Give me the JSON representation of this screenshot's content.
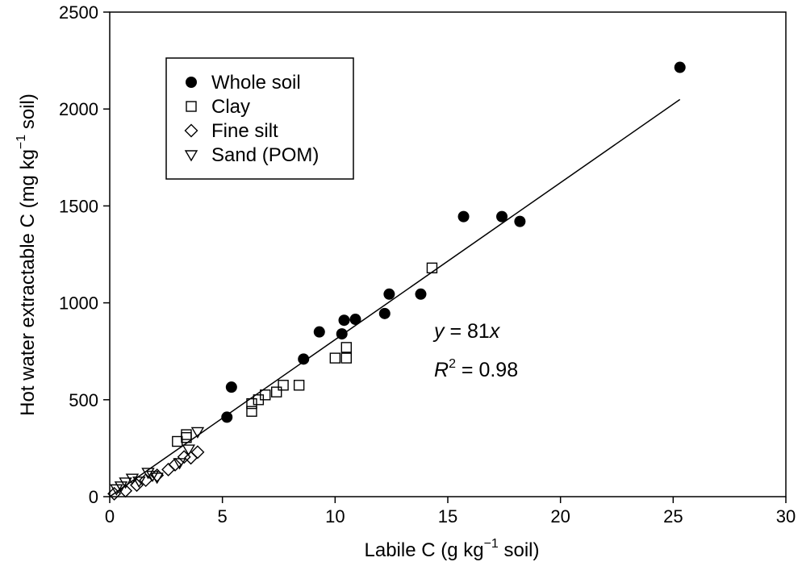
{
  "chart_data": {
    "type": "scatter",
    "xlim": [
      0,
      30
    ],
    "ylim": [
      0,
      2500
    ],
    "xticks": [
      0,
      5,
      10,
      15,
      20,
      25,
      30
    ],
    "yticks": [
      0,
      500,
      1000,
      1500,
      2000,
      2500
    ],
    "xlabel": {
      "prefix": "Labile C (g kg",
      "sup": "−1",
      "suffix": " soil)"
    },
    "ylabel": {
      "prefix": "Hot water extractable C (mg kg",
      "sup": "−1",
      "suffix": " soil)"
    },
    "grid": false,
    "legend_position": "top-left",
    "series": [
      {
        "name": "Whole soil",
        "marker": "filled-circle",
        "points": [
          [
            5.2,
            410
          ],
          [
            5.4,
            565
          ],
          [
            8.6,
            710
          ],
          [
            9.3,
            850
          ],
          [
            10.3,
            840
          ],
          [
            10.4,
            910
          ],
          [
            10.9,
            915
          ],
          [
            12.2,
            945
          ],
          [
            12.4,
            1045
          ],
          [
            13.8,
            1045
          ],
          [
            15.7,
            1445
          ],
          [
            17.4,
            1445
          ],
          [
            18.2,
            1420
          ],
          [
            25.3,
            2215
          ]
        ]
      },
      {
        "name": "Clay",
        "marker": "open-square",
        "points": [
          [
            3.0,
            285
          ],
          [
            3.4,
            320
          ],
          [
            3.4,
            305
          ],
          [
            6.3,
            440
          ],
          [
            6.3,
            480
          ],
          [
            6.6,
            500
          ],
          [
            6.9,
            525
          ],
          [
            7.4,
            540
          ],
          [
            7.7,
            575
          ],
          [
            8.4,
            575
          ],
          [
            10.0,
            715
          ],
          [
            10.5,
            770
          ],
          [
            10.5,
            715
          ],
          [
            14.3,
            1180
          ]
        ]
      },
      {
        "name": "Fine silt",
        "marker": "open-diamond",
        "points": [
          [
            0.2,
            15
          ],
          [
            0.7,
            30
          ],
          [
            1.2,
            60
          ],
          [
            1.6,
            85
          ],
          [
            2.1,
            110
          ],
          [
            2.6,
            140
          ],
          [
            2.9,
            165
          ],
          [
            3.3,
            205
          ],
          [
            3.6,
            200
          ],
          [
            3.9,
            230
          ]
        ]
      },
      {
        "name": "Sand (POM)",
        "marker": "open-triangle-down",
        "points": [
          [
            0.3,
            40
          ],
          [
            0.5,
            55
          ],
          [
            0.7,
            75
          ],
          [
            1.0,
            95
          ],
          [
            1.3,
            80
          ],
          [
            1.7,
            125
          ],
          [
            1.9,
            110
          ],
          [
            2.1,
            100
          ],
          [
            3.1,
            175
          ],
          [
            3.5,
            245
          ],
          [
            3.9,
            335
          ]
        ]
      }
    ],
    "fit_line": {
      "slope": 81,
      "x_range": [
        0,
        25.3
      ]
    },
    "annotations": {
      "equation": {
        "var_y": "y",
        "rest": " = 81",
        "var_x": "x"
      },
      "r2": {
        "var": "R",
        "sup": "2",
        "rest": " = 0.98"
      }
    }
  }
}
